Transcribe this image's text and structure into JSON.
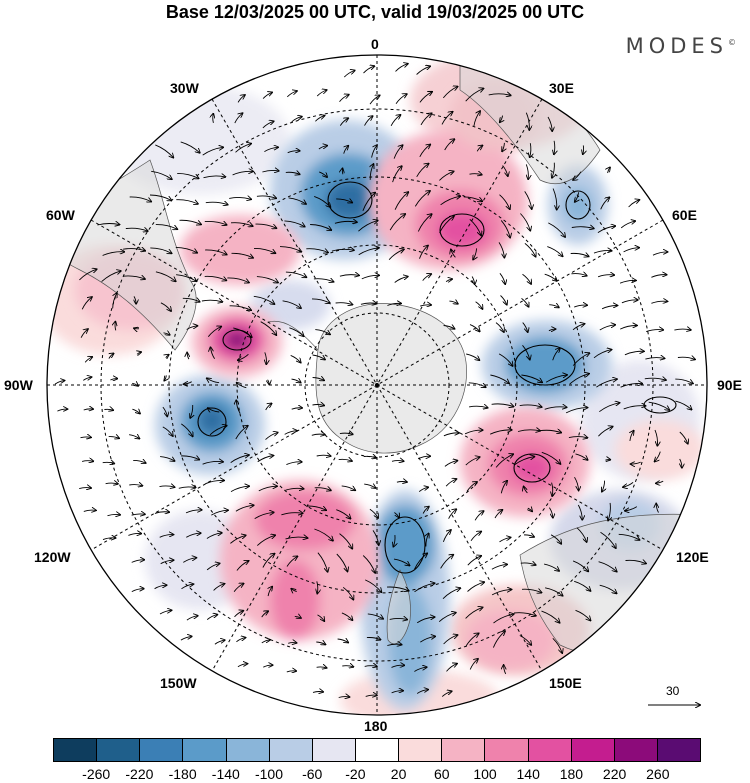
{
  "title": "Base 12/03/2025 00 UTC, valid 19/03/2025 00 UTC",
  "brand": "MODES",
  "brand_mark": "©",
  "labels": {
    "lon_0": "0",
    "lon_30w": "30W",
    "lon_30e": "30E",
    "lon_60w": "60W",
    "lon_60e": "60E",
    "lon_90w": "90W",
    "lon_90e": "90E",
    "lon_120w": "120W",
    "lon_120e": "120E",
    "lon_150w": "150W",
    "lon_150e": "150E",
    "lon_180": "180"
  },
  "reference_vector": "30",
  "colorbar": {
    "colors": [
      "#0e3d5e",
      "#1f5f8b",
      "#3b7fb5",
      "#5b9bc9",
      "#8ab5d9",
      "#b9cde6",
      "#e6e6f2",
      "#ffffff",
      "#fadcdc",
      "#f5b3c4",
      "#ef82ac",
      "#e351a1",
      "#c41d8f",
      "#8c0b7a",
      "#5a0c72"
    ],
    "ticks": [
      "-260",
      "-220",
      "-180",
      "-140",
      "-100",
      "-60",
      "-20",
      "20",
      "60",
      "100",
      "140",
      "180",
      "220",
      "260"
    ]
  }
}
